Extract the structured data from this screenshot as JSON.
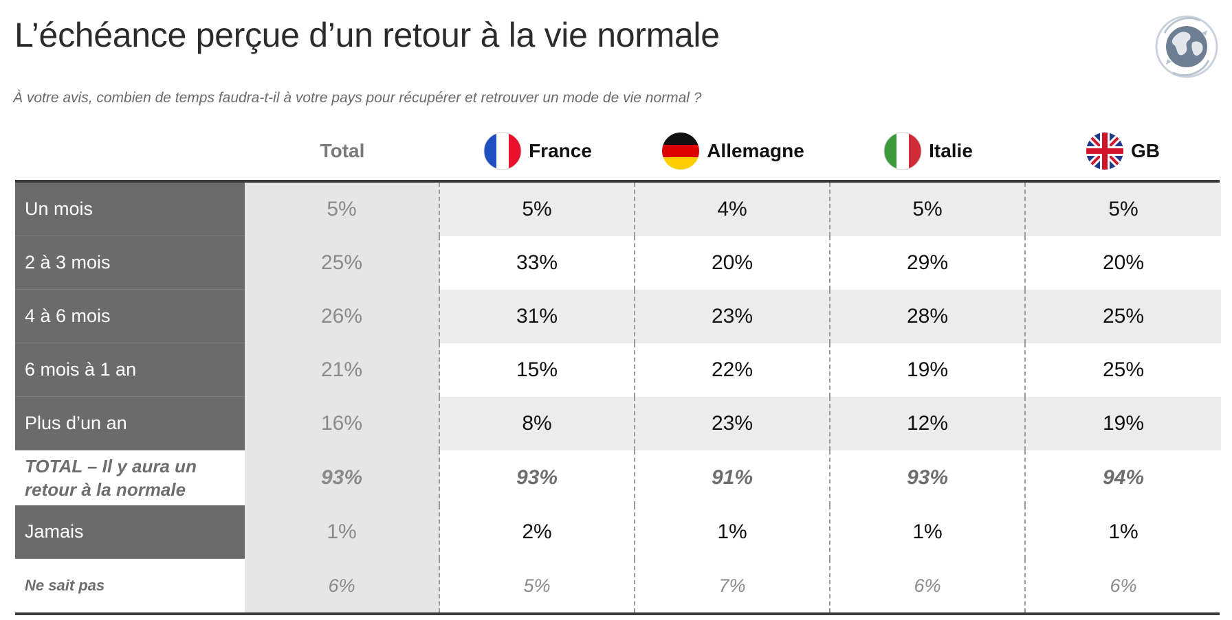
{
  "title": "L’échéance perçue d’un retour à la vie normale",
  "subtitle": "À votre avis, combien de temps faudra-t-il à votre pays pour récupérer et retrouver un mode de vie normal ?",
  "logo": {
    "icon": "globe-icon"
  },
  "columns": {
    "total": "Total",
    "france": "France",
    "allemagne": "Allemagne",
    "italie": "Italie",
    "gb": "GB"
  },
  "rows": [
    {
      "label": "Un mois",
      "total": "5%",
      "france": "5%",
      "allemagne": "4%",
      "italie": "5%",
      "gb": "5%"
    },
    {
      "label": "2 à 3 mois",
      "total": "25%",
      "france": "33%",
      "allemagne": "20%",
      "italie": "29%",
      "gb": "20%"
    },
    {
      "label": "4 à 6 mois",
      "total": "26%",
      "france": "31%",
      "allemagne": "23%",
      "italie": "28%",
      "gb": "25%"
    },
    {
      "label": "6 mois à 1 an",
      "total": "21%",
      "france": "15%",
      "allemagne": "22%",
      "italie": "19%",
      "gb": "25%"
    },
    {
      "label": "Plus d’un an",
      "total": "16%",
      "france": "8%",
      "allemagne": "23%",
      "italie": "12%",
      "gb": "19%"
    },
    {
      "label_line1": "TOTAL – Il y aura un",
      "label_line2": "retour à la normale",
      "total": "93%",
      "france": "93%",
      "allemagne": "91%",
      "italie": "93%",
      "gb": "94%"
    },
    {
      "label": "Jamais",
      "total": "1%",
      "france": "2%",
      "allemagne": "1%",
      "italie": "1%",
      "gb": "1%"
    },
    {
      "label": "Ne sait pas",
      "total": "6%",
      "france": "5%",
      "allemagne": "7%",
      "italie": "6%",
      "gb": "6%"
    }
  ],
  "colors": {
    "label_bg": "#6b6b6b",
    "total_col_bg": "#e6e6e6",
    "shade_bg": "#ececec",
    "france_blue": "#1f4fc1",
    "france_red": "#e8112d",
    "germany_red": "#dd0000",
    "germany_gold": "#ffce00",
    "italy_green": "#3c9a3c",
    "italy_red": "#ce2b37",
    "uk_blue": "#1d3a8a",
    "uk_red": "#cf142b"
  }
}
